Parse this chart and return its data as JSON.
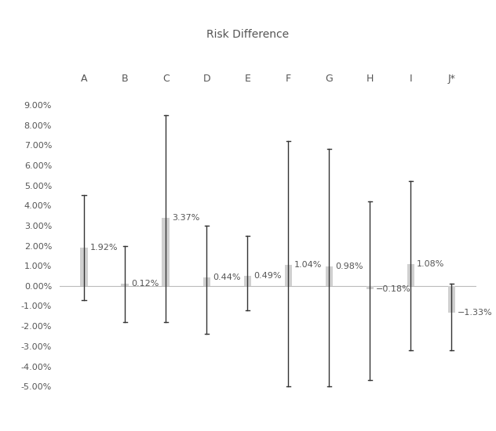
{
  "title": "Risk Difference",
  "hospitals": [
    "A",
    "B",
    "C",
    "D",
    "E",
    "F",
    "G",
    "H",
    "I",
    "J*"
  ],
  "values": [
    1.92,
    0.12,
    3.37,
    0.44,
    0.49,
    1.04,
    0.98,
    -0.18,
    1.08,
    -1.33
  ],
  "ci_upper": [
    4.5,
    2.0,
    8.5,
    3.0,
    2.5,
    7.2,
    6.8,
    4.2,
    5.2,
    0.1
  ],
  "ci_lower": [
    -0.7,
    -1.8,
    -1.8,
    -2.4,
    -1.2,
    -5.0,
    -5.0,
    -4.7,
    -3.2,
    -3.2
  ],
  "ylim": [
    -5.5,
    9.5
  ],
  "yticks": [
    -5.0,
    -4.0,
    -3.0,
    -2.0,
    -1.0,
    0.0,
    1.0,
    2.0,
    3.0,
    4.0,
    5.0,
    6.0,
    7.0,
    8.0,
    9.0
  ],
  "bar_color": "#d0d0d0",
  "line_color": "#333333",
  "bar_width": 0.18,
  "background_color": "#ffffff",
  "title_fontsize": 10,
  "hosp_label_fontsize": 9,
  "value_label_fontsize": 8,
  "tick_fontsize": 8
}
